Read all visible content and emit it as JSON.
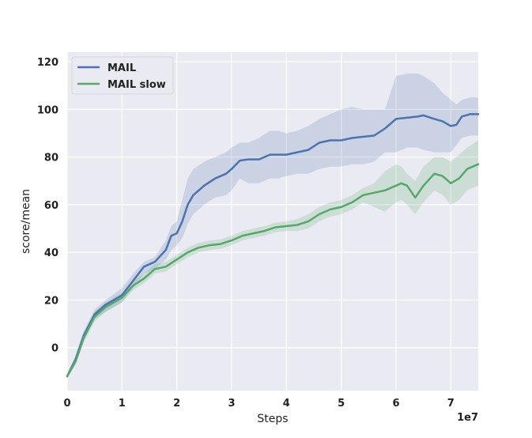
{
  "chart_data": {
    "type": "line",
    "title": "",
    "xlabel": "Steps",
    "ylabel": "score/mean",
    "x_offset_label": "1e7",
    "xlim": [
      0,
      7.5
    ],
    "ylim": [
      -18,
      124
    ],
    "x_ticks": [
      0,
      1,
      2,
      3,
      4,
      5,
      6,
      7
    ],
    "x_tick_labels": [
      "0",
      "1",
      "2",
      "3",
      "4",
      "5",
      "6",
      "7"
    ],
    "y_ticks": [
      0,
      20,
      40,
      60,
      80,
      100,
      120
    ],
    "y_tick_labels": [
      "0",
      "20",
      "40",
      "60",
      "80",
      "100",
      "120"
    ],
    "grid": true,
    "legend_position": "top-left",
    "series": [
      {
        "name": "MAIL",
        "color": "#4c72b0",
        "x": [
          0,
          0.15,
          0.3,
          0.5,
          0.7,
          1.0,
          1.2,
          1.4,
          1.6,
          1.8,
          1.9,
          2.0,
          2.1,
          2.2,
          2.3,
          2.5,
          2.7,
          2.9,
          3.0,
          3.15,
          3.3,
          3.5,
          3.7,
          3.85,
          4.0,
          4.2,
          4.4,
          4.6,
          4.8,
          5.0,
          5.2,
          5.4,
          5.6,
          5.8,
          6.0,
          6.2,
          6.4,
          6.5,
          6.7,
          6.85,
          7.0,
          7.1,
          7.2,
          7.35,
          7.5
        ],
        "mean": [
          -12,
          -5,
          5,
          14,
          18,
          22,
          28,
          34,
          36,
          41,
          47,
          48,
          53,
          60,
          64,
          68,
          71,
          73,
          75,
          78.5,
          79,
          79,
          81,
          81,
          81,
          82,
          83,
          86,
          87,
          87,
          88,
          88.5,
          89,
          92,
          96,
          96.5,
          97,
          97.5,
          96,
          95,
          93,
          93.5,
          97,
          98,
          98
        ],
        "upper": [
          -11,
          -4,
          7,
          16,
          20,
          25,
          31,
          36,
          38,
          45,
          51,
          53,
          62,
          71,
          75,
          78,
          80,
          82,
          84,
          86,
          86,
          88,
          91,
          91,
          90,
          91,
          93,
          96,
          98,
          100,
          101,
          100,
          100,
          100,
          114,
          115,
          115,
          114,
          111,
          107,
          104,
          102,
          104,
          105,
          105
        ],
        "lower": [
          -13,
          -6,
          3,
          12,
          15,
          19,
          25,
          31,
          33,
          37,
          41,
          43,
          46,
          52,
          56,
          60,
          63,
          64,
          66,
          71,
          69,
          69,
          71,
          71,
          72,
          73,
          73,
          75,
          76,
          76,
          77,
          77,
          78,
          82,
          82,
          84,
          84,
          83,
          82,
          82,
          82,
          85,
          88,
          89,
          89
        ]
      },
      {
        "name": "MAIL slow",
        "color": "#55a868",
        "x": [
          0,
          0.15,
          0.3,
          0.5,
          0.7,
          1.0,
          1.2,
          1.4,
          1.6,
          1.8,
          2.0,
          2.2,
          2.4,
          2.6,
          2.8,
          3.0,
          3.2,
          3.4,
          3.6,
          3.8,
          4.0,
          4.2,
          4.4,
          4.6,
          4.8,
          5.0,
          5.2,
          5.4,
          5.6,
          5.8,
          6.0,
          6.1,
          6.2,
          6.35,
          6.5,
          6.7,
          6.85,
          7.0,
          7.15,
          7.3,
          7.5
        ],
        "mean": [
          -12,
          -6,
          4,
          13,
          17,
          21,
          26,
          29,
          33,
          34,
          37,
          40,
          42,
          43,
          43.5,
          45,
          47,
          48,
          49,
          50.5,
          51,
          51.5,
          53,
          56,
          58,
          59,
          61,
          64,
          65,
          66,
          68,
          69,
          68,
          63,
          68,
          73,
          72,
          69,
          71,
          75,
          77
        ],
        "upper": [
          -11,
          -5,
          6,
          15,
          19,
          23,
          28,
          31,
          35,
          36,
          39,
          42,
          44,
          45,
          45.5,
          47,
          49,
          50,
          51,
          52.5,
          53,
          54,
          56,
          59,
          61,
          62,
          64,
          67,
          69,
          74,
          77,
          76,
          73,
          70,
          76,
          80,
          80,
          78,
          81,
          84,
          87
        ],
        "lower": [
          -13,
          -7,
          2,
          11,
          15,
          19,
          24,
          27,
          31,
          32,
          35,
          38,
          40,
          41,
          41.5,
          43,
          45,
          46,
          47,
          48.5,
          49,
          49,
          50,
          53,
          55,
          56,
          58,
          61,
          59,
          57,
          61,
          62,
          60,
          56,
          61,
          66,
          64,
          60,
          62,
          66,
          68
        ]
      }
    ]
  }
}
